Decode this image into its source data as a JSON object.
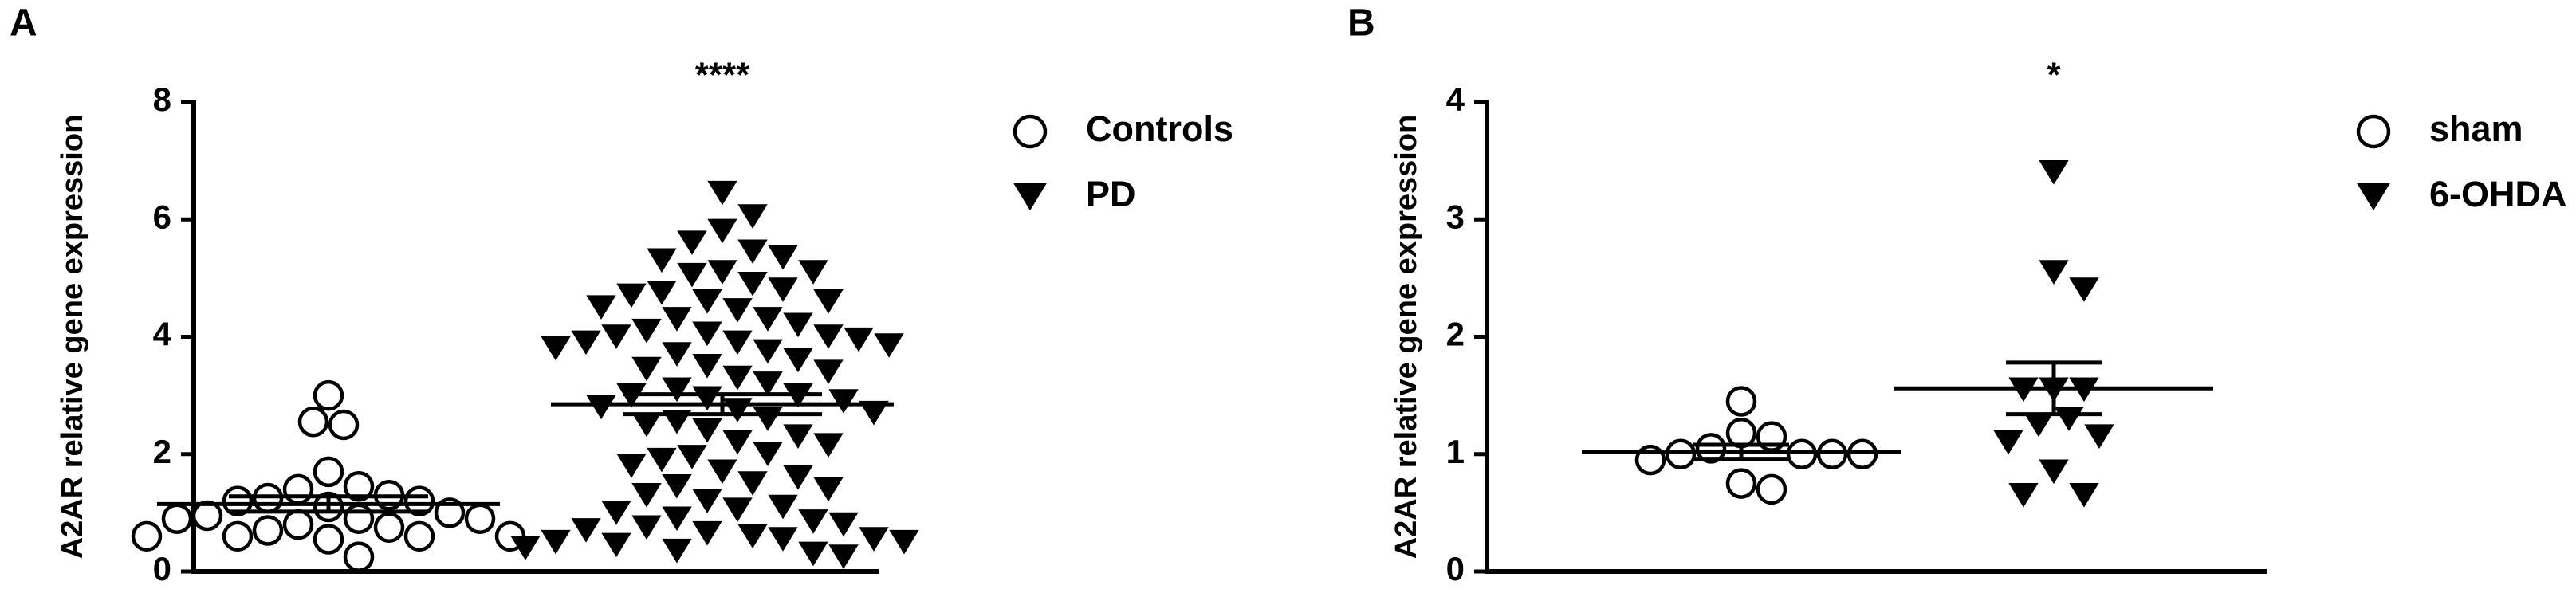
{
  "chart_data": [
    {
      "type": "dotplot",
      "panel_label": "A",
      "annotation": "****",
      "y_label": "A2AR relative gene expression",
      "ylim": [
        0,
        8
      ],
      "yticks": [
        0,
        2,
        4,
        6,
        8
      ],
      "series": [
        {
          "name": "Controls",
          "marker": "circle-open",
          "color": "#000000",
          "mean": 1.15,
          "sem": 0.13,
          "values": [
            3.0,
            2.5,
            2.55,
            1.7,
            1.45,
            1.4,
            1.3,
            1.25,
            1.2,
            1.2,
            1.1,
            1.0,
            0.95,
            0.9,
            0.9,
            0.9,
            0.8,
            0.75,
            0.7,
            0.6,
            0.6,
            0.6,
            0.6,
            0.55,
            0.25
          ]
        },
        {
          "name": "PD",
          "marker": "triangle-down",
          "color": "#000000",
          "mean": 2.85,
          "sem": 0.17,
          "values": [
            6.45,
            6.05,
            5.8,
            5.6,
            5.45,
            5.35,
            5.3,
            5.1,
            5.1,
            5.05,
            4.9,
            4.8,
            4.75,
            4.7,
            4.6,
            4.6,
            4.5,
            4.45,
            4.3,
            4.3,
            4.2,
            4.1,
            4.05,
            4.0,
            4.0,
            3.95,
            3.9,
            3.9,
            3.85,
            3.8,
            3.75,
            3.7,
            3.6,
            3.5,
            3.45,
            3.4,
            3.3,
            3.2,
            3.1,
            3.0,
            3.0,
            2.95,
            2.9,
            2.8,
            2.75,
            2.7,
            2.6,
            2.55,
            2.5,
            2.4,
            2.3,
            2.2,
            2.15,
            2.0,
            1.95,
            1.9,
            1.8,
            1.7,
            1.6,
            1.5,
            1.45,
            1.4,
            1.3,
            1.2,
            1.1,
            1.05,
            1.0,
            0.9,
            0.85,
            0.8,
            0.75,
            0.7,
            0.65,
            0.6,
            0.55,
            0.55,
            0.5,
            0.5,
            0.45,
            0.4,
            0.35,
            0.3,
            0.25
          ]
        }
      ]
    },
    {
      "type": "dotplot",
      "panel_label": "B",
      "annotation": "*",
      "y_label": "A2AR relative gene expression",
      "ylim": [
        0,
        4
      ],
      "yticks": [
        0,
        1,
        2,
        3,
        4
      ],
      "series": [
        {
          "name": "sham",
          "marker": "circle-open",
          "color": "#000000",
          "mean": 1.02,
          "sem": 0.06,
          "values": [
            1.45,
            1.18,
            1.15,
            1.05,
            1.0,
            1.0,
            1.0,
            0.95,
            1.0,
            0.75,
            0.7
          ]
        },
        {
          "name": "6-OHDA",
          "marker": "triangle-down",
          "color": "#000000",
          "mean": 1.56,
          "sem": 0.22,
          "values": [
            3.4,
            2.55,
            2.4,
            1.55,
            1.55,
            1.55,
            1.3,
            1.25,
            1.15,
            1.1,
            0.85,
            0.65,
            0.65
          ]
        }
      ]
    }
  ]
}
